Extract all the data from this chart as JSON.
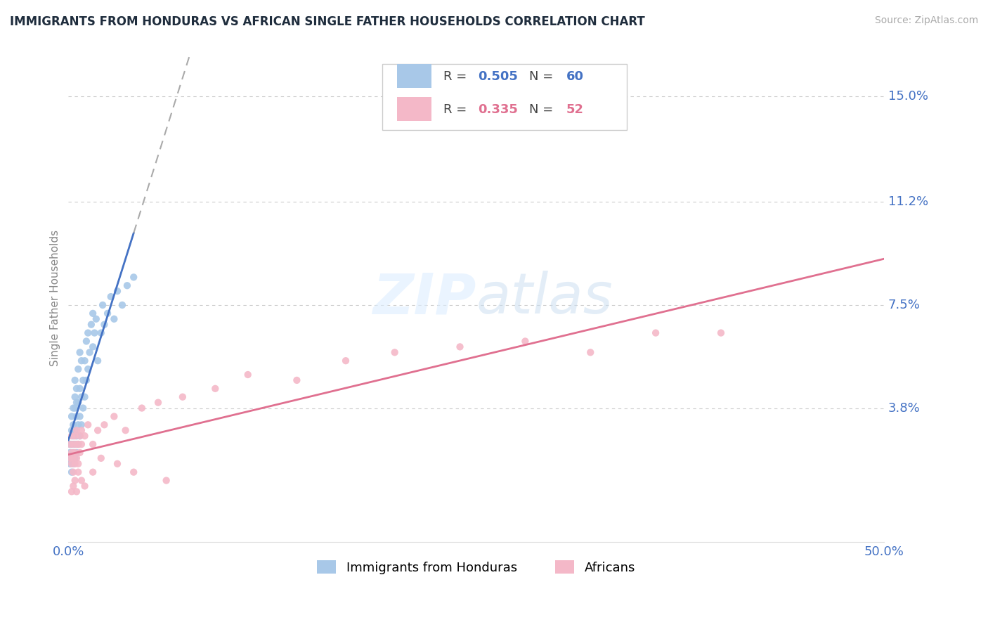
{
  "title": "IMMIGRANTS FROM HONDURAS VS AFRICAN SINGLE FATHER HOUSEHOLDS CORRELATION CHART",
  "source": "Source: ZipAtlas.com",
  "ylabel": "Single Father Households",
  "xlim": [
    0.0,
    0.5
  ],
  "ylim": [
    -0.01,
    0.165
  ],
  "background_color": "#ffffff",
  "grid_color": "#cccccc",
  "series1_color": "#a8c8e8",
  "series1_line_color": "#4472c4",
  "series2_color": "#f4b8c8",
  "series2_line_color": "#e07090",
  "R1": 0.505,
  "N1": 60,
  "R2": 0.335,
  "N2": 52,
  "legend1": "Immigrants from Honduras",
  "legend2": "Africans",
  "title_color": "#1f2d3d",
  "tick_color": "#4472c4",
  "ytick_vals": [
    0.038,
    0.075,
    0.112,
    0.15
  ],
  "ytick_labels": [
    "3.8%",
    "7.5%",
    "11.2%",
    "15.0%"
  ],
  "honduras_x": [
    0.001,
    0.001,
    0.001,
    0.002,
    0.002,
    0.002,
    0.002,
    0.002,
    0.003,
    0.003,
    0.003,
    0.003,
    0.003,
    0.004,
    0.004,
    0.004,
    0.004,
    0.004,
    0.004,
    0.005,
    0.005,
    0.005,
    0.005,
    0.005,
    0.006,
    0.006,
    0.006,
    0.006,
    0.007,
    0.007,
    0.007,
    0.007,
    0.008,
    0.008,
    0.008,
    0.009,
    0.009,
    0.01,
    0.01,
    0.011,
    0.011,
    0.012,
    0.012,
    0.013,
    0.014,
    0.015,
    0.015,
    0.016,
    0.017,
    0.018,
    0.02,
    0.021,
    0.022,
    0.024,
    0.026,
    0.028,
    0.03,
    0.033,
    0.036,
    0.04
  ],
  "honduras_y": [
    0.018,
    0.022,
    0.025,
    0.015,
    0.02,
    0.025,
    0.03,
    0.035,
    0.018,
    0.022,
    0.028,
    0.032,
    0.038,
    0.02,
    0.025,
    0.03,
    0.038,
    0.042,
    0.048,
    0.022,
    0.028,
    0.035,
    0.04,
    0.045,
    0.025,
    0.032,
    0.04,
    0.052,
    0.028,
    0.035,
    0.045,
    0.058,
    0.032,
    0.042,
    0.055,
    0.038,
    0.048,
    0.042,
    0.055,
    0.048,
    0.062,
    0.052,
    0.065,
    0.058,
    0.068,
    0.06,
    0.072,
    0.065,
    0.07,
    0.055,
    0.065,
    0.075,
    0.068,
    0.072,
    0.078,
    0.07,
    0.08,
    0.075,
    0.082,
    0.085
  ],
  "african_x": [
    0.001,
    0.001,
    0.002,
    0.002,
    0.002,
    0.003,
    0.003,
    0.003,
    0.004,
    0.004,
    0.004,
    0.005,
    0.005,
    0.005,
    0.006,
    0.006,
    0.007,
    0.007,
    0.008,
    0.008,
    0.01,
    0.012,
    0.015,
    0.018,
    0.022,
    0.028,
    0.035,
    0.045,
    0.055,
    0.07,
    0.09,
    0.11,
    0.14,
    0.17,
    0.2,
    0.24,
    0.28,
    0.32,
    0.36,
    0.4,
    0.002,
    0.003,
    0.004,
    0.005,
    0.006,
    0.008,
    0.01,
    0.015,
    0.02,
    0.03,
    0.04,
    0.06
  ],
  "african_y": [
    0.02,
    0.025,
    0.018,
    0.022,
    0.028,
    0.015,
    0.02,
    0.025,
    0.018,
    0.022,
    0.028,
    0.02,
    0.025,
    0.03,
    0.018,
    0.025,
    0.022,
    0.028,
    0.025,
    0.03,
    0.028,
    0.032,
    0.025,
    0.03,
    0.032,
    0.035,
    0.03,
    0.038,
    0.04,
    0.042,
    0.045,
    0.05,
    0.048,
    0.055,
    0.058,
    0.06,
    0.062,
    0.058,
    0.065,
    0.065,
    0.008,
    0.01,
    0.012,
    0.008,
    0.015,
    0.012,
    0.01,
    0.015,
    0.02,
    0.018,
    0.015,
    0.012
  ]
}
